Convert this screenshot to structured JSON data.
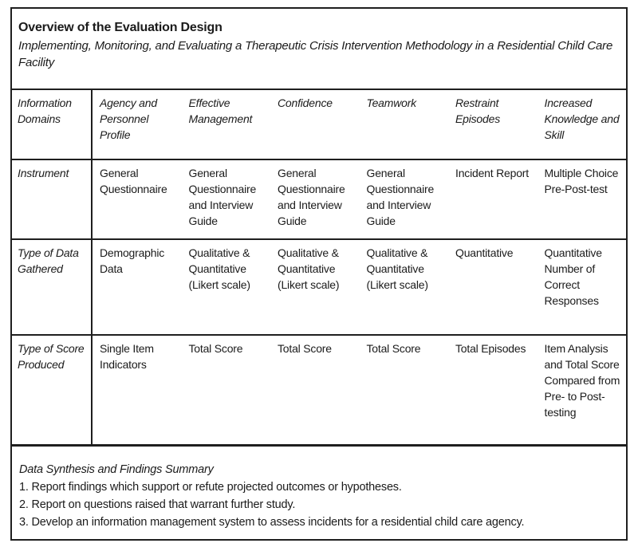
{
  "figure": {
    "title": "Overview of the Evaluation Design",
    "subtitle": "Implementing, Monitoring, and Evaluating a Therapeutic Crisis Intervention Methodology in a Residential Child Care Facility"
  },
  "table": {
    "header": {
      "col0": "Information Domains",
      "col1": "Agency and Personnel Profile",
      "col2": "Effective Management",
      "col3": "Confidence",
      "col4": "Teamwork",
      "col5": "Restraint Episodes",
      "col6": "Increased Knowledge and Skill"
    },
    "rows": [
      {
        "label": "Instrument",
        "cells": [
          "General Questionnaire",
          "General Questionnaire and Interview Guide",
          "General Questionnaire and Interview Guide",
          "General Questionnaire and Interview Guide",
          "Incident Report",
          "Multiple Choice Pre-Post-test"
        ]
      },
      {
        "label": "Type of Data Gathered",
        "cells": [
          "Demographic Data",
          "Qualitative & Quantitative (Likert scale)",
          "Qualitative & Quantitative (Likert scale)",
          "Qualitative & Quantitative (Likert scale)",
          "Quantitative",
          "Quantitative Number of Correct Responses"
        ]
      },
      {
        "label": "Type of Score Produced",
        "cells": [
          "Single Item Indicators",
          "Total Score",
          "Total Score",
          "Total Score",
          "Total Episodes",
          "Item Analysis and Total Score Compared from Pre- to Post-testing"
        ]
      }
    ]
  },
  "footer": {
    "heading": "Data Synthesis and Findings Summary",
    "items": [
      "1. Report findings which support or refute projected outcomes or hypotheses.",
      "2. Report on questions raised that warrant further study.",
      "3. Develop an information management system to assess incidents for a residential child care agency."
    ]
  },
  "colors": {
    "border": "#1f1f1f",
    "background": "#ffffff",
    "text": "#1b1b1b"
  }
}
